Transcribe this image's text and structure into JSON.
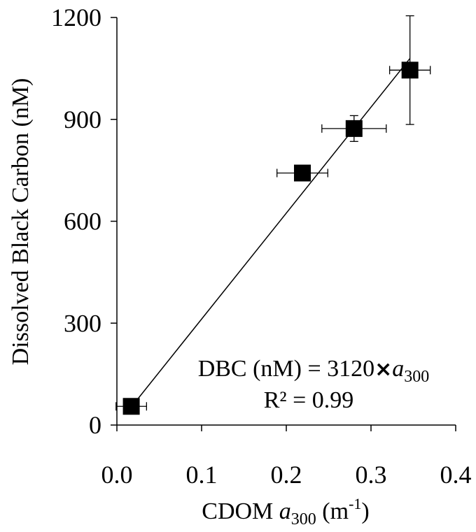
{
  "chart_data": {
    "type": "scatter",
    "xlabel": "CDOM a300 (m-1)",
    "xlabel_parts": {
      "main": "CDOM ",
      "var": "a",
      "sub": "300",
      "unit_open": " (m",
      "sup": "-1",
      "unit_close": ")"
    },
    "ylabel": "Dissolved Black Carbon (nM)",
    "xlim": [
      0.0,
      0.4
    ],
    "ylim": [
      0,
      1200
    ],
    "xticks": [
      "0.0",
      "0.1",
      "0.2",
      "0.3",
      "0.4"
    ],
    "yticks": [
      "0",
      "300",
      "600",
      "900",
      "1200"
    ],
    "grid": false,
    "legend": "none",
    "marker": "square",
    "marker_color": "#000000",
    "points": [
      {
        "x": 0.017,
        "y": 55,
        "x_err": 0.018,
        "y_err": 10
      },
      {
        "x": 0.219,
        "y": 742,
        "x_err": 0.03,
        "y_err": 12
      },
      {
        "x": 0.28,
        "y": 873,
        "x_err": 0.038,
        "y_err": 38
      },
      {
        "x": 0.346,
        "y": 1045,
        "x_err": 0.024,
        "y_err": 160
      }
    ],
    "fit_line": {
      "slope": 3120,
      "intercept": 0,
      "x_range": [
        0.017,
        0.346
      ]
    },
    "annotation": {
      "equation_prefix": "DBC (nM) = 3120",
      "equation_times": "×",
      "equation_var": "a",
      "equation_sub": "300",
      "r2_label": "R²",
      "r2_text": "R² = 0.99"
    }
  }
}
